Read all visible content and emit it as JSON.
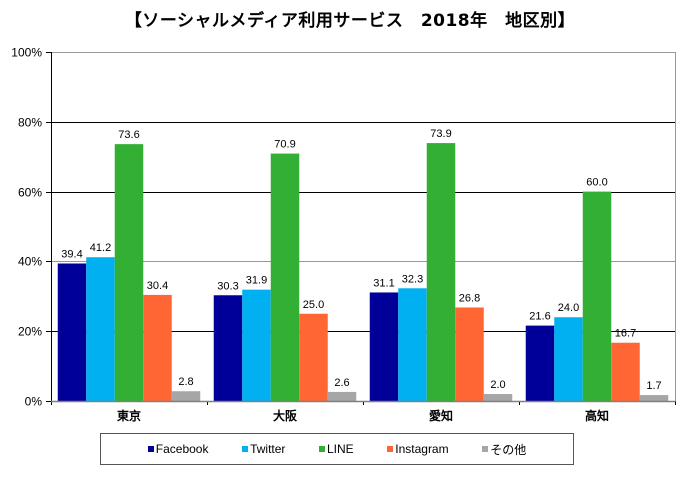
{
  "chart_data": {
    "type": "bar",
    "title": "【ソーシャルメディア利用サービス　2018年　地区別】",
    "xlabel": "",
    "ylabel": "",
    "ylim": [
      0,
      100
    ],
    "yticks": [
      "0%",
      "20%",
      "40%",
      "60%",
      "80%",
      "100%"
    ],
    "ytick_values": [
      0,
      20,
      40,
      60,
      80,
      100
    ],
    "grid": true,
    "legend_position": "bottom",
    "categories": [
      "東京",
      "大阪",
      "愛知",
      "高知"
    ],
    "series": [
      {
        "name": "Facebook",
        "color": "#000099",
        "values": [
          39.4,
          30.3,
          31.1,
          21.6
        ],
        "labels": [
          "39.4",
          "30.3",
          "31.1",
          "21.6"
        ]
      },
      {
        "name": "Twitter",
        "color": "#00B0F0",
        "values": [
          41.2,
          31.9,
          32.3,
          24.0
        ],
        "labels": [
          "41.2",
          "31.9",
          "32.3",
          "24.0"
        ]
      },
      {
        "name": "LINE",
        "color": "#33B033",
        "values": [
          73.6,
          70.9,
          73.9,
          60.0
        ],
        "labels": [
          "73.6",
          "70.9",
          "73.9",
          "60.0"
        ]
      },
      {
        "name": "Instagram",
        "color": "#FF6633",
        "values": [
          30.4,
          25.0,
          26.8,
          16.7
        ],
        "labels": [
          "30.4",
          "25.0",
          "26.8",
          "16.7"
        ]
      },
      {
        "name": "その他",
        "color": "#A6A6A6",
        "values": [
          2.8,
          2.6,
          2.0,
          1.7
        ],
        "labels": [
          "2.8",
          "2.6",
          "2.0",
          "1.7"
        ]
      }
    ]
  }
}
